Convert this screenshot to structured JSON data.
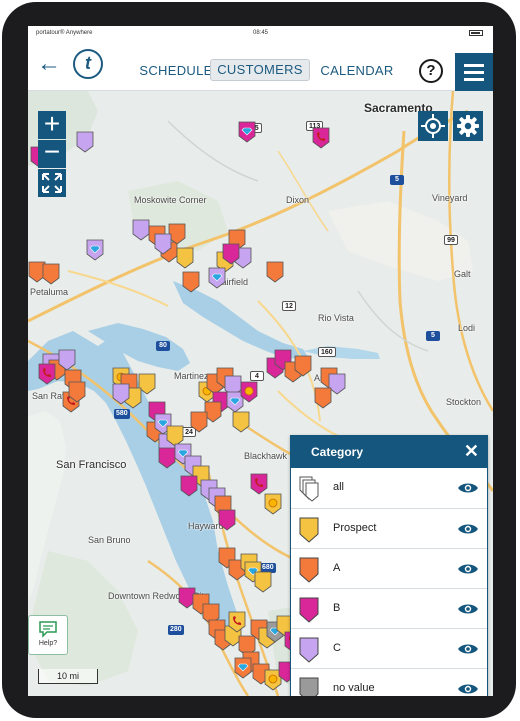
{
  "status_bar": {
    "carrier": "portatour® Anywhere",
    "time": "08:45"
  },
  "app_bar": {
    "tabs": [
      {
        "label": "SCHEDULE"
      },
      {
        "label": "CUSTOMERS"
      },
      {
        "label": "CALENDAR"
      }
    ],
    "active_tab": "CUSTOMERS",
    "help_label": "?",
    "logo_letter": "t"
  },
  "map": {
    "places": [
      {
        "name": "Sacramento"
      },
      {
        "name": "Moskowite Corner"
      },
      {
        "name": "Dixon"
      },
      {
        "name": "Vineyard"
      },
      {
        "name": "Fairfield"
      },
      {
        "name": "Galt"
      },
      {
        "name": "Rio Vista"
      },
      {
        "name": "Lodi"
      },
      {
        "name": "Martinez"
      },
      {
        "name": "Antioch"
      },
      {
        "name": "Stockton"
      },
      {
        "name": "San Francisco"
      },
      {
        "name": "Blackhawk"
      },
      {
        "name": "Hayward"
      },
      {
        "name": "San Bruno"
      },
      {
        "name": "Downtown Redwood City"
      },
      {
        "name": "Petaluma"
      },
      {
        "name": "San Rafael"
      }
    ],
    "shields": [
      {
        "label": "505",
        "kind": "us"
      },
      {
        "label": "113",
        "kind": "us"
      },
      {
        "label": "5",
        "kind": "i"
      },
      {
        "label": "99",
        "kind": "us"
      },
      {
        "label": "12",
        "kind": "us"
      },
      {
        "label": "80",
        "kind": "i"
      },
      {
        "label": "160",
        "kind": "us"
      },
      {
        "label": "5",
        "kind": "i"
      },
      {
        "label": "4",
        "kind": "us"
      },
      {
        "label": "24",
        "kind": "us"
      },
      {
        "label": "580",
        "kind": "i"
      },
      {
        "label": "680",
        "kind": "i"
      },
      {
        "label": "280",
        "kind": "i"
      }
    ],
    "scale_label": "10 mi",
    "help_label": "Help?"
  },
  "category_panel": {
    "title": "Category",
    "close_label": "✕",
    "items": [
      {
        "label": "all",
        "color": "#ffffff",
        "icon": "stack-pins-icon"
      },
      {
        "label": "Prospect",
        "color": "#f5c342",
        "icon": "pin-icon"
      },
      {
        "label": "A",
        "color": "#f47a3c",
        "icon": "pin-icon"
      },
      {
        "label": "B",
        "color": "#d9279a",
        "icon": "pin-icon"
      },
      {
        "label": "C",
        "color": "#c6a4f0",
        "icon": "pin-icon"
      },
      {
        "label": "no value",
        "color": "#9a9a9a",
        "icon": "pin-icon"
      }
    ]
  },
  "colors": {
    "brand": "#14567d",
    "prospect": "#f5c342",
    "a": "#f47a3c",
    "b": "#d9279a",
    "c": "#c6a4f0",
    "none": "#9a9a9a"
  }
}
